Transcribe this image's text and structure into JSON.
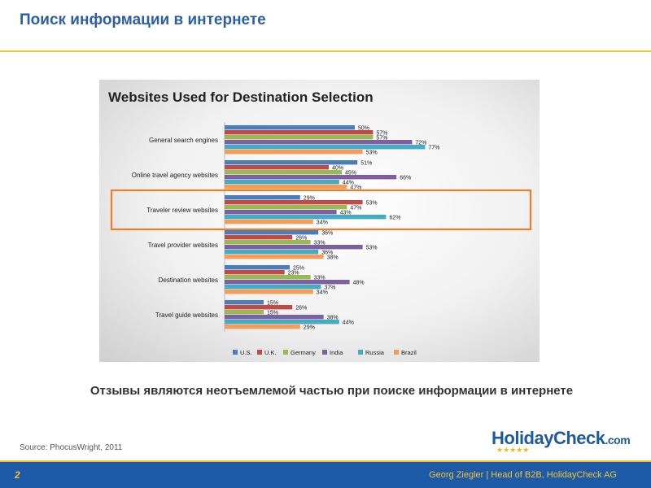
{
  "slide": {
    "title": "Поиск информации в интернете",
    "caption": "Отзывы являются неотъемлемой частью при поиске информации в интернете",
    "source": "Source: PhocusWright, 2011",
    "page_number": "2",
    "footer": "Georg Ziegler | Head of B2B, HolidayCheck AG"
  },
  "logo": {
    "word": "HolidayCheck",
    "suffix": ".com",
    "stars": "★★★★★"
  },
  "colors": {
    "title": "#2d5fa3",
    "accent_rule": "#f2c230",
    "footer_bg": "#1d5aa8",
    "highlight": "#f07e26"
  },
  "chart_data": {
    "type": "bar",
    "orientation": "horizontal",
    "title": "Websites Used for Destination Selection",
    "categories": [
      "General search engines",
      "Online travel agency websites",
      "Traveler review websites",
      "Travel provider websites",
      "Destination websites",
      "Travel guide websites"
    ],
    "series": [
      {
        "name": "U.S.",
        "color": "#4a7ebb",
        "values": [
          50,
          51,
          29,
          36,
          25,
          15
        ]
      },
      {
        "name": "U.K.",
        "color": "#be4b48",
        "values": [
          57,
          40,
          53,
          26,
          23,
          26
        ]
      },
      {
        "name": "Germany",
        "color": "#98b954",
        "values": [
          57,
          45,
          47,
          33,
          33,
          15
        ]
      },
      {
        "name": "India",
        "color": "#7d60a0",
        "values": [
          72,
          66,
          43,
          53,
          48,
          38
        ]
      },
      {
        "name": "Russia",
        "color": "#46aac5",
        "values": [
          77,
          44,
          62,
          36,
          37,
          44
        ]
      },
      {
        "name": "Brazil",
        "color": "#f59d56",
        "values": [
          53,
          47,
          34,
          38,
          34,
          29
        ]
      }
    ],
    "value_suffix": "%",
    "xlim": [
      0,
      100
    ],
    "highlighted_category": "Traveler review websites",
    "legend": "bottom"
  }
}
